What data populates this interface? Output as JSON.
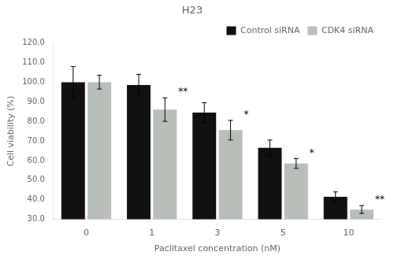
{
  "chart_data": {
    "type": "bar",
    "title": "H23",
    "xlabel": "Paclitaxel concentration (nM)",
    "ylabel": "Cell viability (%)",
    "categories": [
      "0",
      "1",
      "3",
      "5",
      "10"
    ],
    "series": [
      {
        "name": "Control siRNA",
        "color": "#111111",
        "values": [
          100.0,
          98.5,
          84.5,
          66.5,
          41.5
        ],
        "errors": [
          8.0,
          5.5,
          5.0,
          4.0,
          2.5
        ]
      },
      {
        "name": "CDK4 siRNA",
        "color": "#b8beb8",
        "values": [
          100.0,
          86.0,
          75.5,
          58.5,
          35.0
        ],
        "errors": [
          3.5,
          6.0,
          5.0,
          2.5,
          2.0
        ]
      }
    ],
    "ylim": [
      30.0,
      120.0
    ],
    "yticks": [
      {
        "value": 30,
        "label": "30.0"
      },
      {
        "value": 40,
        "label": "40.0"
      },
      {
        "value": 50,
        "label": "50.0"
      },
      {
        "value": 60,
        "label": "60.0"
      },
      {
        "value": 70,
        "label": "70.0"
      },
      {
        "value": 80,
        "label": "80.0"
      },
      {
        "value": 90,
        "label": "90.0"
      },
      {
        "value": 100,
        "label": "100.0"
      },
      {
        "value": 110,
        "label": "110.0"
      },
      {
        "value": 120,
        "label": "120.0"
      }
    ],
    "annotations": [
      {
        "category": "1",
        "series": "CDK4 siRNA",
        "text": "**"
      },
      {
        "category": "3",
        "series": "CDK4 siRNA",
        "text": "*"
      },
      {
        "category": "5",
        "series": "CDK4 siRNA",
        "text": "*"
      },
      {
        "category": "10",
        "series": "CDK4 siRNA",
        "text": "**"
      }
    ],
    "legend": "upper right",
    "grid": false
  }
}
